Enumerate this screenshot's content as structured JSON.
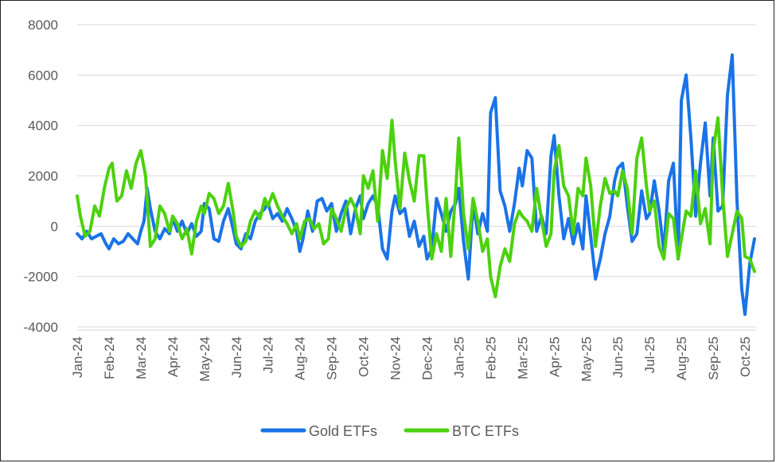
{
  "chart_data": {
    "type": "line",
    "title": "",
    "xlabel": "",
    "ylabel": "",
    "ylim": [
      -4000,
      8000
    ],
    "yticks": [
      -4000,
      -2000,
      0,
      2000,
      4000,
      6000,
      8000
    ],
    "xticks": [
      "Jan-24",
      "Feb-24",
      "Mar-24",
      "Apr-24",
      "May-24",
      "Jun-24",
      "Jul-24",
      "Aug-24",
      "Sep-24",
      "Oct-24",
      "Nov-24",
      "Dec-24",
      "Jan-25",
      "Feb-25",
      "Mar-25",
      "Apr-25",
      "May-25",
      "Jun-25",
      "Jul-25",
      "Aug-25",
      "Sep-25",
      "Oct-25"
    ],
    "x_unit": "month (0 = Jan-24)",
    "grid": true,
    "legend": "bottom",
    "series": [
      {
        "name": "Gold ETFs",
        "color": "#1a73e8",
        "points": [
          [
            0.0,
            -300
          ],
          [
            0.15,
            -500
          ],
          [
            0.3,
            -200
          ],
          [
            0.45,
            -500
          ],
          [
            0.6,
            -400
          ],
          [
            0.75,
            -300
          ],
          [
            0.9,
            -700
          ],
          [
            1.0,
            -900
          ],
          [
            1.15,
            -500
          ],
          [
            1.3,
            -700
          ],
          [
            1.45,
            -600
          ],
          [
            1.6,
            -300
          ],
          [
            1.75,
            -500
          ],
          [
            1.9,
            -700
          ],
          [
            2.0,
            -200
          ],
          [
            2.1,
            200
          ],
          [
            2.2,
            1500
          ],
          [
            2.3,
            700
          ],
          [
            2.45,
            -200
          ],
          [
            2.6,
            -500
          ],
          [
            2.75,
            -100
          ],
          [
            2.9,
            -300
          ],
          [
            3.0,
            300
          ],
          [
            3.15,
            -200
          ],
          [
            3.3,
            200
          ],
          [
            3.45,
            -300
          ],
          [
            3.6,
            100
          ],
          [
            3.75,
            -400
          ],
          [
            3.9,
            -200
          ],
          [
            4.0,
            900
          ],
          [
            4.15,
            700
          ],
          [
            4.3,
            -500
          ],
          [
            4.45,
            -600
          ],
          [
            4.6,
            200
          ],
          [
            4.75,
            700
          ],
          [
            4.9,
            -100
          ],
          [
            5.0,
            -700
          ],
          [
            5.15,
            -900
          ],
          [
            5.3,
            -300
          ],
          [
            5.45,
            -500
          ],
          [
            5.6,
            200
          ],
          [
            5.75,
            500
          ],
          [
            5.9,
            700
          ],
          [
            6.0,
            900
          ],
          [
            6.15,
            300
          ],
          [
            6.3,
            500
          ],
          [
            6.45,
            200
          ],
          [
            6.6,
            700
          ],
          [
            6.75,
            300
          ],
          [
            6.9,
            -200
          ],
          [
            7.0,
            -1000
          ],
          [
            7.1,
            -500
          ],
          [
            7.25,
            600
          ],
          [
            7.4,
            -200
          ],
          [
            7.55,
            1000
          ],
          [
            7.7,
            1100
          ],
          [
            7.85,
            600
          ],
          [
            8.0,
            900
          ],
          [
            8.15,
            -200
          ],
          [
            8.3,
            500
          ],
          [
            8.45,
            1000
          ],
          [
            8.6,
            -300
          ],
          [
            8.75,
            700
          ],
          [
            8.9,
            1200
          ],
          [
            9.0,
            300
          ],
          [
            9.15,
            900
          ],
          [
            9.3,
            1200
          ],
          [
            9.45,
            800
          ],
          [
            9.6,
            -900
          ],
          [
            9.75,
            -1300
          ],
          [
            9.9,
            600
          ],
          [
            10.0,
            1200
          ],
          [
            10.15,
            500
          ],
          [
            10.3,
            700
          ],
          [
            10.45,
            -400
          ],
          [
            10.6,
            200
          ],
          [
            10.75,
            -800
          ],
          [
            10.9,
            -400
          ],
          [
            11.0,
            -1300
          ],
          [
            11.15,
            -900
          ],
          [
            11.3,
            1100
          ],
          [
            11.45,
            500
          ],
          [
            11.6,
            -200
          ],
          [
            11.75,
            600
          ],
          [
            11.9,
            900
          ],
          [
            12.0,
            1500
          ],
          [
            12.15,
            -600
          ],
          [
            12.3,
            -2100
          ],
          [
            12.45,
            900
          ],
          [
            12.6,
            -300
          ],
          [
            12.75,
            500
          ],
          [
            12.9,
            -200
          ],
          [
            13.0,
            4500
          ],
          [
            13.15,
            5100
          ],
          [
            13.3,
            1400
          ],
          [
            13.45,
            800
          ],
          [
            13.6,
            -200
          ],
          [
            13.75,
            900
          ],
          [
            13.9,
            2300
          ],
          [
            14.0,
            1600
          ],
          [
            14.15,
            3000
          ],
          [
            14.3,
            2700
          ],
          [
            14.45,
            -200
          ],
          [
            14.6,
            400
          ],
          [
            14.75,
            -300
          ],
          [
            14.9,
            2800
          ],
          [
            15.0,
            3600
          ],
          [
            15.15,
            1200
          ],
          [
            15.3,
            -500
          ],
          [
            15.45,
            300
          ],
          [
            15.6,
            -700
          ],
          [
            15.75,
            100
          ],
          [
            15.9,
            -900
          ],
          [
            16.0,
            1200
          ],
          [
            16.15,
            -400
          ],
          [
            16.3,
            -2100
          ],
          [
            16.45,
            -1300
          ],
          [
            16.6,
            -300
          ],
          [
            16.75,
            400
          ],
          [
            16.9,
            1800
          ],
          [
            17.0,
            2300
          ],
          [
            17.15,
            2500
          ],
          [
            17.3,
            800
          ],
          [
            17.45,
            -600
          ],
          [
            17.6,
            -300
          ],
          [
            17.75,
            1400
          ],
          [
            17.9,
            300
          ],
          [
            18.0,
            500
          ],
          [
            18.15,
            1800
          ],
          [
            18.3,
            600
          ],
          [
            18.45,
            -1000
          ],
          [
            18.6,
            1800
          ],
          [
            18.75,
            2500
          ],
          [
            18.9,
            -1300
          ],
          [
            19.0,
            5000
          ],
          [
            19.15,
            6000
          ],
          [
            19.3,
            3500
          ],
          [
            19.45,
            400
          ],
          [
            19.6,
            2500
          ],
          [
            19.75,
            4100
          ],
          [
            19.9,
            1200
          ],
          [
            20.0,
            3500
          ],
          [
            20.15,
            600
          ],
          [
            20.3,
            800
          ],
          [
            20.45,
            5200
          ],
          [
            20.6,
            6800
          ],
          [
            20.75,
            1000
          ],
          [
            20.9,
            -2500
          ],
          [
            21.0,
            -3500
          ],
          [
            21.15,
            -1500
          ],
          [
            21.3,
            -500
          ]
        ]
      },
      {
        "name": "BTC ETFs",
        "color": "#4cd10e",
        "points": [
          [
            0.0,
            1200
          ],
          [
            0.1,
            400
          ],
          [
            0.25,
            -400
          ],
          [
            0.4,
            -200
          ],
          [
            0.55,
            800
          ],
          [
            0.7,
            400
          ],
          [
            0.85,
            1500
          ],
          [
            1.0,
            2300
          ],
          [
            1.1,
            2500
          ],
          [
            1.25,
            1000
          ],
          [
            1.4,
            1200
          ],
          [
            1.55,
            2200
          ],
          [
            1.7,
            1500
          ],
          [
            1.85,
            2500
          ],
          [
            2.0,
            3000
          ],
          [
            2.15,
            2000
          ],
          [
            2.3,
            -800
          ],
          [
            2.45,
            -500
          ],
          [
            2.6,
            800
          ],
          [
            2.75,
            500
          ],
          [
            2.9,
            -200
          ],
          [
            3.0,
            400
          ],
          [
            3.15,
            100
          ],
          [
            3.3,
            -500
          ],
          [
            3.45,
            -100
          ],
          [
            3.6,
            -1100
          ],
          [
            3.75,
            200
          ],
          [
            3.9,
            800
          ],
          [
            4.0,
            500
          ],
          [
            4.15,
            1300
          ],
          [
            4.3,
            1100
          ],
          [
            4.45,
            500
          ],
          [
            4.6,
            800
          ],
          [
            4.75,
            1700
          ],
          [
            4.9,
            600
          ],
          [
            5.0,
            -400
          ],
          [
            5.15,
            -800
          ],
          [
            5.3,
            -600
          ],
          [
            5.45,
            200
          ],
          [
            5.6,
            600
          ],
          [
            5.75,
            300
          ],
          [
            5.9,
            1100
          ],
          [
            6.0,
            800
          ],
          [
            6.15,
            1300
          ],
          [
            6.3,
            800
          ],
          [
            6.45,
            400
          ],
          [
            6.6,
            100
          ],
          [
            6.75,
            -300
          ],
          [
            6.9,
            100
          ],
          [
            7.0,
            -500
          ],
          [
            7.15,
            200
          ],
          [
            7.3,
            300
          ],
          [
            7.45,
            -100
          ],
          [
            7.6,
            100
          ],
          [
            7.75,
            -700
          ],
          [
            7.9,
            -500
          ],
          [
            8.0,
            700
          ],
          [
            8.15,
            300
          ],
          [
            8.3,
            -200
          ],
          [
            8.45,
            700
          ],
          [
            8.6,
            1100
          ],
          [
            8.75,
            700
          ],
          [
            8.9,
            -300
          ],
          [
            9.0,
            2000
          ],
          [
            9.15,
            1500
          ],
          [
            9.3,
            2200
          ],
          [
            9.45,
            200
          ],
          [
            9.6,
            3000
          ],
          [
            9.75,
            1900
          ],
          [
            9.9,
            4200
          ],
          [
            10.0,
            2600
          ],
          [
            10.15,
            700
          ],
          [
            10.3,
            2900
          ],
          [
            10.45,
            1800
          ],
          [
            10.6,
            1000
          ],
          [
            10.75,
            2800
          ],
          [
            10.9,
            2800
          ],
          [
            11.0,
            1000
          ],
          [
            11.15,
            -1300
          ],
          [
            11.3,
            -300
          ],
          [
            11.45,
            -1000
          ],
          [
            11.6,
            1100
          ],
          [
            11.75,
            -1200
          ],
          [
            11.9,
            1300
          ],
          [
            12.0,
            3500
          ],
          [
            12.15,
            500
          ],
          [
            12.3,
            -900
          ],
          [
            12.45,
            1100
          ],
          [
            12.6,
            200
          ],
          [
            12.75,
            -1000
          ],
          [
            12.9,
            -500
          ],
          [
            13.0,
            -2000
          ],
          [
            13.15,
            -2800
          ],
          [
            13.3,
            -1600
          ],
          [
            13.45,
            -900
          ],
          [
            13.6,
            -1400
          ],
          [
            13.75,
            100
          ],
          [
            13.9,
            600
          ],
          [
            14.0,
            400
          ],
          [
            14.15,
            200
          ],
          [
            14.3,
            -200
          ],
          [
            14.45,
            1500
          ],
          [
            14.6,
            300
          ],
          [
            14.75,
            -800
          ],
          [
            14.9,
            -300
          ],
          [
            15.0,
            2200
          ],
          [
            15.15,
            3200
          ],
          [
            15.3,
            1600
          ],
          [
            15.45,
            1200
          ],
          [
            15.6,
            -300
          ],
          [
            15.75,
            1500
          ],
          [
            15.9,
            1200
          ],
          [
            16.0,
            2700
          ],
          [
            16.15,
            1600
          ],
          [
            16.3,
            -800
          ],
          [
            16.45,
            800
          ],
          [
            16.6,
            1900
          ],
          [
            16.75,
            1300
          ],
          [
            16.9,
            1400
          ],
          [
            17.0,
            1200
          ],
          [
            17.15,
            2200
          ],
          [
            17.3,
            1500
          ],
          [
            17.45,
            -300
          ],
          [
            17.6,
            2700
          ],
          [
            17.75,
            3500
          ],
          [
            17.9,
            1600
          ],
          [
            18.0,
            600
          ],
          [
            18.15,
            1000
          ],
          [
            18.3,
            -800
          ],
          [
            18.45,
            -1300
          ],
          [
            18.6,
            500
          ],
          [
            18.75,
            300
          ],
          [
            18.9,
            -1300
          ],
          [
            19.0,
            -500
          ],
          [
            19.15,
            600
          ],
          [
            19.3,
            400
          ],
          [
            19.45,
            2200
          ],
          [
            19.6,
            100
          ],
          [
            19.75,
            700
          ],
          [
            19.9,
            -700
          ],
          [
            20.0,
            3000
          ],
          [
            20.15,
            4300
          ],
          [
            20.3,
            1200
          ],
          [
            20.45,
            -1200
          ],
          [
            20.6,
            -300
          ],
          [
            20.75,
            600
          ],
          [
            20.9,
            300
          ],
          [
            21.0,
            -1200
          ],
          [
            21.15,
            -1300
          ],
          [
            21.3,
            -1800
          ]
        ]
      }
    ]
  }
}
